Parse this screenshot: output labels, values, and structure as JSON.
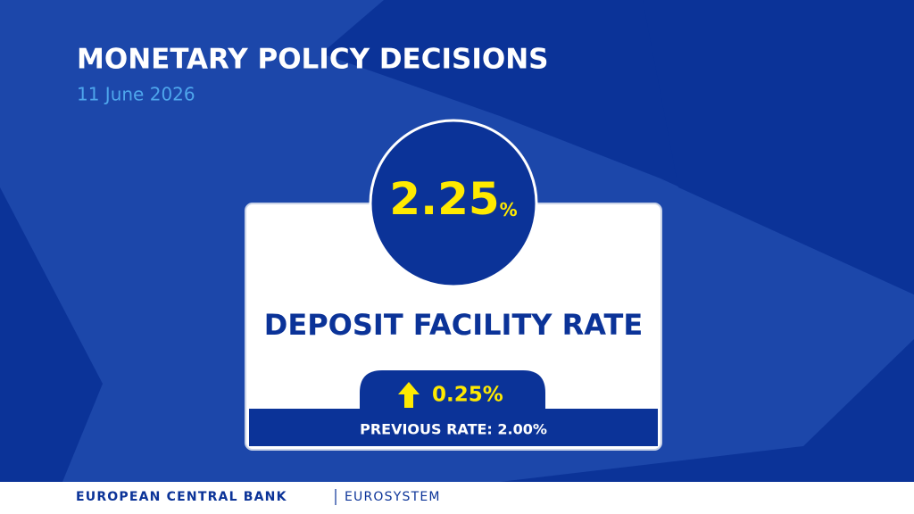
{
  "header": {
    "title": "MONETARY POLICY DECISIONS",
    "date": "11 June 2026"
  },
  "rate": {
    "value": "2.25",
    "unit": "%",
    "name": "DEPOSIT FACILITY RATE",
    "change": "0.25%",
    "previous": "PREVIOUS RATE: 2.00%"
  },
  "footer": {
    "bank": "EUROPEAN CENTRAL BANK",
    "system": "EUROSYSTEM"
  }
}
